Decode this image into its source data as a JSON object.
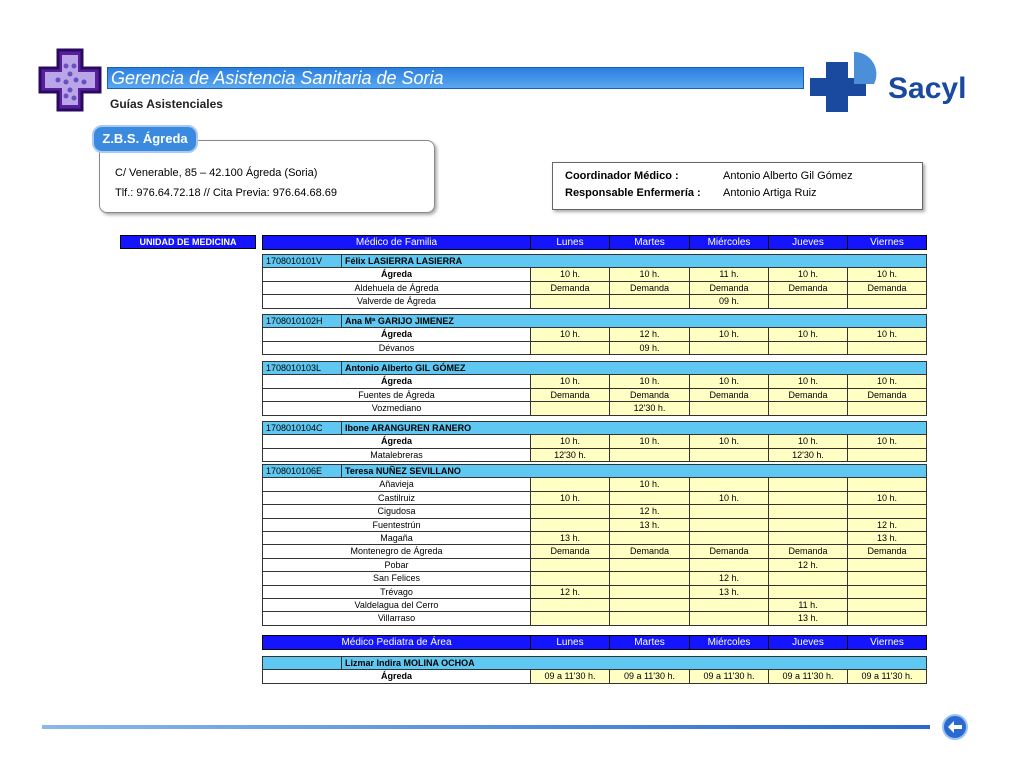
{
  "header": {
    "title": "Gerencia de Asistencia Sanitaria de Soria",
    "subtitle": "Guías Asistenciales",
    "logo_text": "Sacyl"
  },
  "zbs": {
    "label": "Z.B.S. Ágreda",
    "address": [
      "C/ Venerable, 85 – 42.100 Ágreda (Soria)",
      "Tlf.: 976.64.72.18 // Cita Previa: 976.64.68.69"
    ]
  },
  "contacts": [
    {
      "role": "Coordinador Médico :",
      "name": "Antonio Alberto Gil Gómez"
    },
    {
      "role": "Responsable Enfermería :",
      "name": "Antonio Artiga Ruiz"
    }
  ],
  "unit": "UNIDAD DE MEDICINA",
  "medicina": {
    "header": [
      "Médico de Familia",
      "Lunes",
      "Martes",
      "Miércoles",
      "Jueves",
      "Viernes"
    ],
    "doctors": [
      {
        "code": "1708010101V",
        "name": "Félix LASIERRA LASIERRA",
        "rows": [
          [
            "Ágreda",
            "10 h.",
            "10 h.",
            "11 h.",
            "10 h.",
            "10 h."
          ],
          [
            "Aldehuela de Ágreda",
            "Demanda",
            "Demanda",
            "Demanda",
            "Demanda",
            "Demanda"
          ],
          [
            "Valverde de Ágreda",
            null,
            null,
            "09 h.",
            null,
            null
          ]
        ]
      },
      {
        "code": "1708010102H",
        "name": "Ana Mª GARIJO JIMENEZ",
        "rows": [
          [
            "Ágreda",
            "10 h.",
            "12 h.",
            "10 h.",
            "10 h.",
            "10 h."
          ],
          [
            "Dévanos",
            null,
            "09 h.",
            null,
            null,
            null
          ]
        ]
      },
      {
        "code": "1708010103L",
        "name": "Antonio Alberto GIL GÓMEZ",
        "rows": [
          [
            "Ágreda",
            "10 h.",
            "10 h.",
            "10 h.",
            "10 h.",
            "10 h."
          ],
          [
            "Fuentes de Ágreda",
            "Demanda",
            "Demanda",
            "Demanda",
            "Demanda",
            "Demanda"
          ],
          [
            "Vozmediano",
            null,
            "12'30 h.",
            null,
            null,
            null
          ]
        ]
      },
      {
        "code": "1708010104C",
        "name": "Ibone ARANGUREN RANERO",
        "rows": [
          [
            "Ágreda",
            "10 h.",
            "10 h.",
            "10 h.",
            "10 h.",
            "10 h."
          ],
          [
            "Matalebreras",
            "12'30 h.",
            null,
            null,
            "12'30 h.",
            null
          ]
        ]
      },
      {
        "code": "1708010106E",
        "name": "Teresa NUÑEZ SEVILLANO",
        "rows": [
          [
            "Añavieja",
            null,
            "10 h.",
            null,
            null,
            null
          ],
          [
            "Castilruiz",
            "10 h.",
            null,
            "10 h.",
            null,
            "10 h."
          ],
          [
            "Cigudosa",
            null,
            "12 h.",
            null,
            null,
            null
          ],
          [
            "Fuentestrún",
            null,
            "13 h.",
            null,
            null,
            "12 h."
          ],
          [
            "Magaña",
            "13 h.",
            null,
            null,
            null,
            "13 h."
          ],
          [
            "Montenegro de Ágreda",
            "Demanda",
            "Demanda",
            "Demanda",
            "Demanda",
            "Demanda"
          ],
          [
            "Pobar",
            null,
            null,
            null,
            "12 h.",
            null
          ],
          [
            "San Felices",
            null,
            null,
            "12 h.",
            null,
            null
          ],
          [
            "Trévago",
            "12 h.",
            null,
            "13 h.",
            null,
            null
          ],
          [
            "Valdelagua del Cerro",
            null,
            null,
            null,
            "11 h.",
            null
          ],
          [
            "Villarraso",
            null,
            null,
            null,
            "13 h.",
            null
          ]
        ]
      }
    ]
  },
  "pediatria": {
    "header": [
      "Médico Pediatra de Área",
      "Lunes",
      "Martes",
      "Miércoles",
      "Jueves",
      "Viernes"
    ],
    "doctors": [
      {
        "name": "Lizmar Indira MOLINA OCHOA",
        "rows": [
          [
            "Ágreda",
            "09 a 11'30 h.",
            "09 a 11'30 h.",
            "09 a 11'30 h.",
            "09 a 11'30 h.",
            "09 a 11'30 h."
          ]
        ]
      }
    ]
  }
}
